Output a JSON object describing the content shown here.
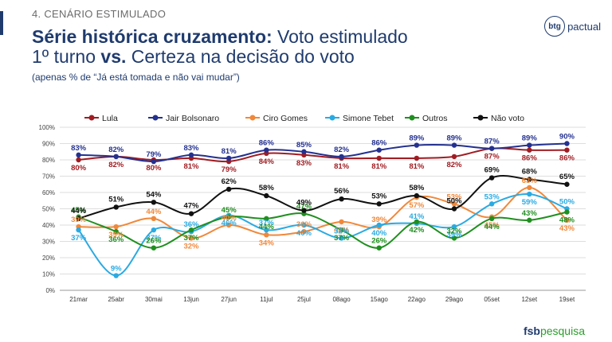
{
  "header": {
    "section_label": "4. CENÁRIO ESTIMULADO",
    "title_bold_1": "Série histórica cruzamento:",
    "title_regular_1": " Voto estimulado",
    "title_regular_2": "1º turno ",
    "title_bold_2": "vs.",
    "title_regular_3": " Certeza na decisão do voto",
    "subtitle": "(apenas % de “Já está tomada e não vai mudar”)"
  },
  "branding": {
    "btg_mark": "btg",
    "btg_text": "pactual",
    "fsb_bold": "fsb",
    "fsb_regular": "pesquisa"
  },
  "chart_data": {
    "type": "line",
    "categories": [
      "21mar",
      "25abr",
      "30mai",
      "13jun",
      "27jun",
      "11jul",
      "25jul",
      "08ago",
      "15ago",
      "22ago",
      "29ago",
      "05set",
      "12set",
      "19set"
    ],
    "ylim": [
      0,
      100
    ],
    "yticks": [
      0,
      10,
      20,
      30,
      40,
      50,
      60,
      70,
      80,
      90,
      100
    ],
    "ytick_suffix": "%",
    "legend_position": "top",
    "grid": true,
    "series": [
      {
        "name": "Lula",
        "color": "#a01c22",
        "values": [
          80,
          82,
          80,
          81,
          79,
          84,
          83,
          81,
          81,
          81,
          82,
          87,
          86,
          86
        ],
        "labels": [
          "80%",
          "82%",
          "80%",
          "81%",
          "79%",
          "84%",
          "83%",
          "81%",
          "81%",
          "81%",
          "82%",
          "87%",
          "86%",
          "86%"
        ]
      },
      {
        "name": "Jair Bolsonaro",
        "color": "#23318f",
        "values": [
          83,
          82,
          79,
          83,
          81,
          86,
          85,
          82,
          86,
          89,
          89,
          87,
          89,
          90
        ],
        "labels": [
          "83%",
          "82%",
          "79%",
          "83%",
          "81%",
          "86%",
          "85%",
          "82%",
          "86%",
          "89%",
          "89%",
          "87%",
          "89%",
          "90%"
        ]
      },
      {
        "name": "Ciro Gomes",
        "color": "#f0883a",
        "values": [
          39,
          39,
          44,
          32,
          40,
          34,
          36,
          42,
          39,
          57,
          53,
          45,
          63,
          43
        ],
        "labels": [
          "39%",
          "39%",
          "44%",
          "32%",
          "40%",
          "34%",
          "36%",
          "42%",
          "39%",
          "57%",
          "53%",
          "45%",
          "63%",
          "43%"
        ]
      },
      {
        "name": "Simone Tebet",
        "color": "#2aaae2",
        "values": [
          37,
          9,
          37,
          36,
          46,
          37,
          40,
          32,
          40,
          41,
          39,
          53,
          59,
          50
        ],
        "labels": [
          "37%",
          "9%",
          "37%",
          "36%",
          "46%",
          "37%",
          "40%",
          "32%",
          "40%",
          "41%",
          "39%",
          "53%",
          "59%",
          "50%"
        ]
      },
      {
        "name": "Outros",
        "color": "#1f8f1f",
        "values": [
          45,
          36,
          26,
          37,
          45,
          44,
          47,
          37,
          26,
          42,
          32,
          44,
          43,
          48
        ],
        "labels": [
          "45%",
          "36%",
          "26%",
          "37%",
          "45%",
          "44%",
          "47%",
          "37%",
          "26%",
          "42%",
          "32%",
          "44%",
          "43%",
          "48%"
        ]
      },
      {
        "name": "Não voto",
        "color": "#111111",
        "values": [
          44,
          51,
          54,
          47,
          62,
          58,
          49,
          56,
          53,
          58,
          50,
          69,
          68,
          65
        ],
        "labels": [
          "44%",
          "51%",
          "54%",
          "47%",
          "62%",
          "58%",
          "49%",
          "56%",
          "53%",
          "58%",
          "50%",
          "69%",
          "68%",
          "65%"
        ]
      }
    ]
  }
}
